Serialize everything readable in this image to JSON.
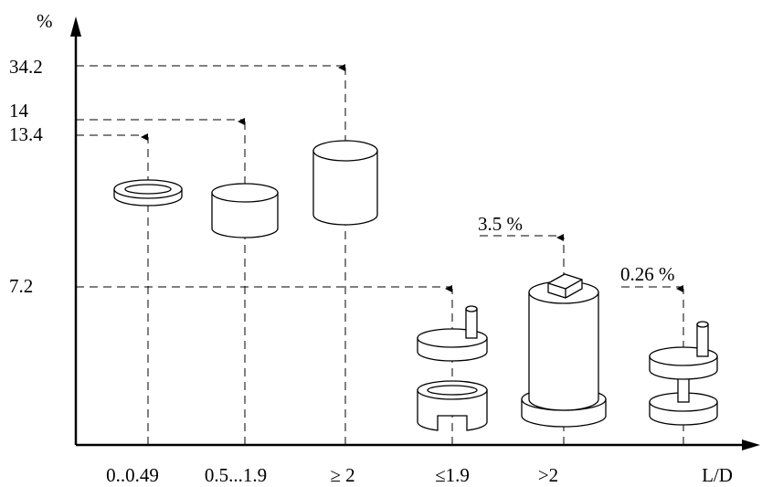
{
  "y_axis": {
    "label": "%",
    "ticks": [
      34.2,
      14,
      13.4,
      7.2
    ]
  },
  "x_axis": {
    "label": "L/D",
    "categories": [
      "0..0.49",
      "0.5...1.9",
      "≥ 2",
      "≤1.9",
      ">2"
    ]
  },
  "annotations": [
    "3.5 %",
    "0.26 %"
  ]
}
